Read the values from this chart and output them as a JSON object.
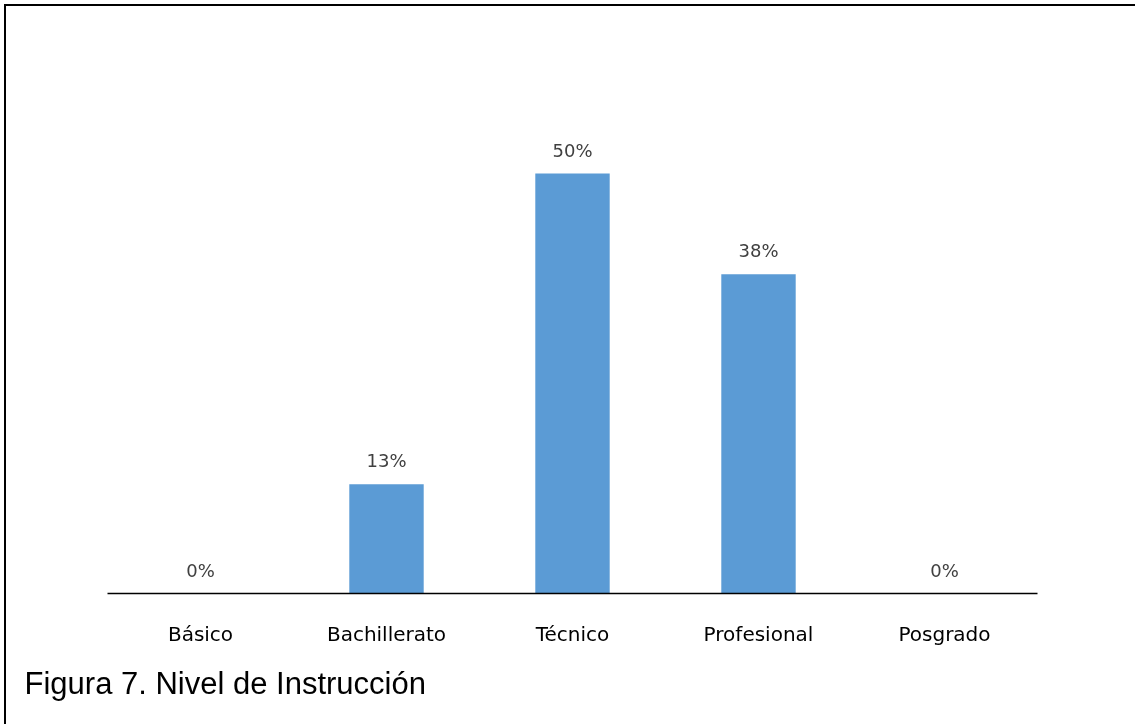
{
  "chart_data": {
    "type": "bar",
    "title": "Figura 7.  Nivel de Instrucción",
    "categories": [
      "Básico",
      "Bachillerato",
      "Técnico",
      "Profesional",
      "Posgrado"
    ],
    "values": [
      0,
      13,
      50,
      38,
      0
    ],
    "color": "#5b9bd5",
    "value_labels": [
      "0%",
      "13%",
      "50%",
      "38%",
      "0%"
    ],
    "tick_labels": "x",
    "grid": false
  }
}
